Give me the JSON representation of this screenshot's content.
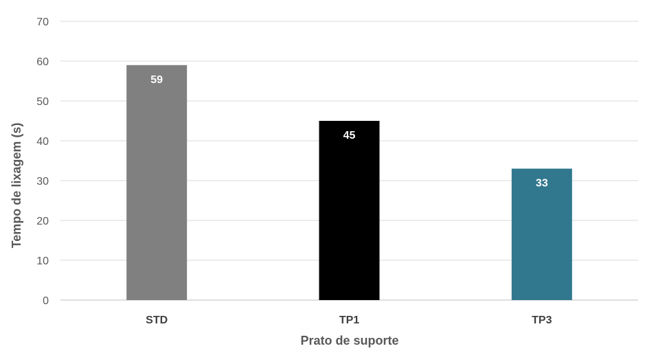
{
  "chart_data": {
    "type": "bar",
    "title": "",
    "xlabel": "Prato de suporte",
    "ylabel": "Tempo de lixagem (s)",
    "categories": [
      "STD",
      "TP1",
      "TP3"
    ],
    "values": [
      59,
      45,
      33
    ],
    "data_labels": [
      "59",
      "45",
      "33"
    ],
    "colors": [
      "#808080",
      "#000000",
      "#31788F"
    ],
    "ylim": [
      0,
      70
    ],
    "yticks": [
      0,
      10,
      20,
      30,
      40,
      50,
      60,
      70
    ],
    "grid": true,
    "legend": "none"
  }
}
